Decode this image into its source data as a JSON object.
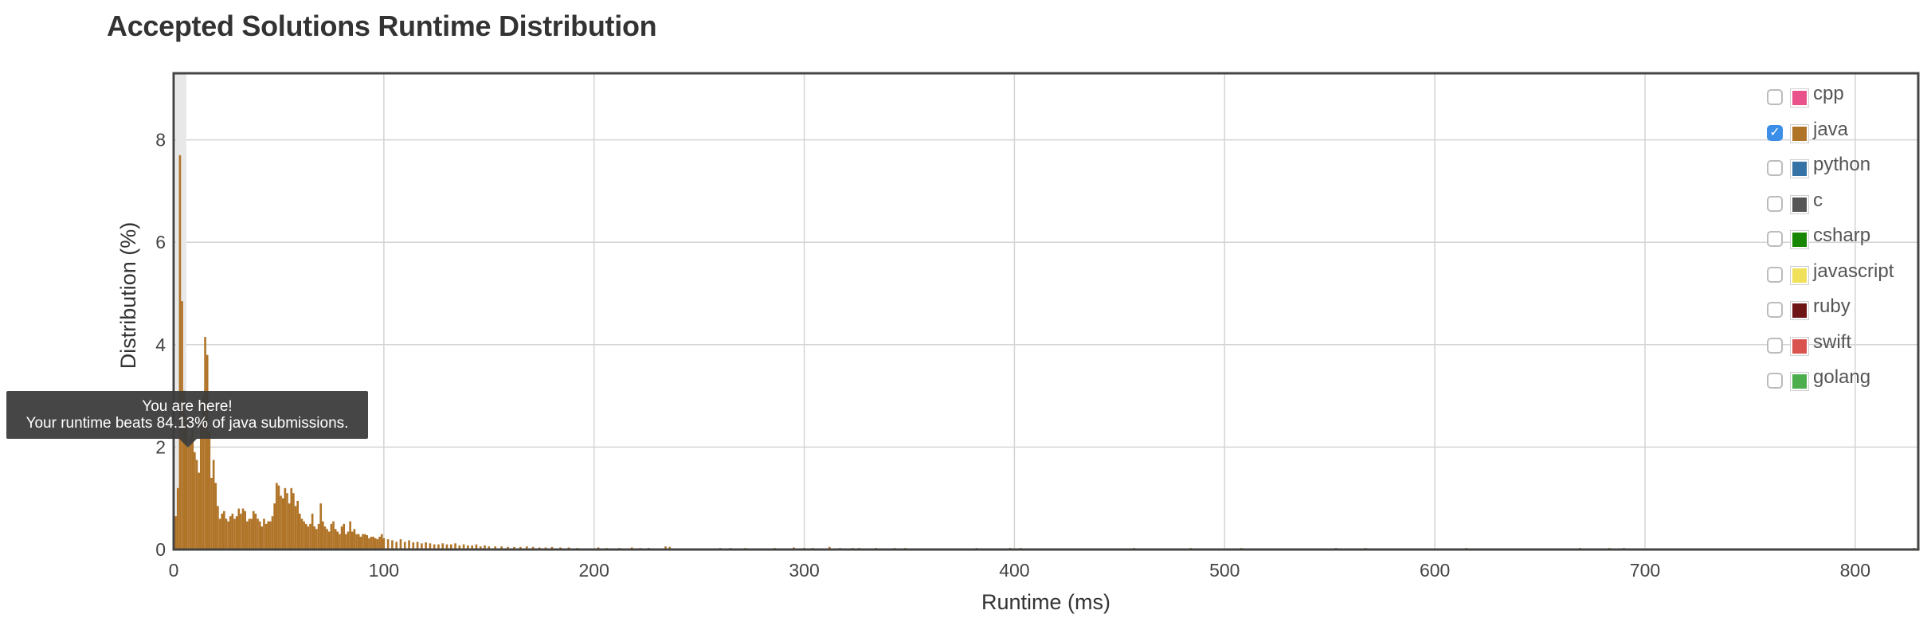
{
  "page": {
    "title": "Accepted Solutions Runtime Distribution"
  },
  "chart_data": {
    "type": "bar",
    "title": "Accepted Solutions Runtime Distribution",
    "xlabel": "Runtime (ms)",
    "ylabel": "Distribution (%)",
    "xlim": [
      0,
      830
    ],
    "ylim": [
      0,
      9.3
    ],
    "xticks": [
      0,
      100,
      200,
      300,
      400,
      500,
      600,
      700,
      800
    ],
    "yticks": [
      0,
      2,
      4,
      6,
      8
    ],
    "grid": true,
    "legend_position": "top-right",
    "bar_color": "#b07428",
    "highlight_color": "#e8e8e8",
    "highlight_range": [
      1,
      6
    ],
    "series": [
      {
        "name": "java",
        "x": [
          1,
          2,
          3,
          4,
          5,
          6,
          7,
          8,
          9,
          10,
          11,
          12,
          13,
          14,
          15,
          16,
          17,
          18,
          19,
          20,
          21,
          22,
          23,
          24,
          25,
          26,
          27,
          28,
          29,
          30,
          31,
          32,
          33,
          34,
          35,
          36,
          37,
          38,
          39,
          40,
          41,
          42,
          43,
          44,
          45,
          46,
          47,
          48,
          49,
          50,
          51,
          52,
          53,
          54,
          55,
          56,
          57,
          58,
          59,
          60,
          61,
          62,
          63,
          64,
          65,
          66,
          67,
          68,
          69,
          70,
          71,
          72,
          73,
          74,
          75,
          76,
          77,
          78,
          79,
          80,
          81,
          82,
          83,
          84,
          85,
          86,
          87,
          88,
          89,
          90,
          91,
          92,
          93,
          94,
          95,
          96,
          97,
          98,
          99,
          100,
          102,
          104,
          106,
          108,
          110,
          112,
          114,
          116,
          118,
          120,
          122,
          124,
          126,
          128,
          130,
          132,
          134,
          136,
          138,
          140,
          142,
          144,
          146,
          148,
          150,
          153,
          156,
          159,
          162,
          165,
          168,
          171,
          174,
          177,
          180,
          184,
          188,
          192,
          202,
          206,
          212,
          218,
          222,
          226,
          234,
          236,
          260,
          265,
          272,
          286,
          295,
          300,
          304,
          312,
          317,
          323,
          326,
          334,
          343,
          348,
          382,
          398,
          403,
          457,
          484,
          508,
          553,
          567,
          615,
          669,
          683,
          690,
          828
        ],
        "values": [
          0.65,
          1.2,
          7.7,
          4.85,
          3.1,
          2.5,
          2.0,
          2.2,
          2.6,
          1.9,
          1.75,
          1.5,
          2.5,
          3.0,
          4.15,
          3.8,
          2.3,
          1.4,
          1.75,
          1.3,
          0.85,
          0.6,
          0.7,
          0.75,
          0.6,
          0.55,
          0.65,
          0.7,
          0.6,
          0.65,
          0.8,
          0.7,
          0.8,
          0.75,
          0.55,
          0.6,
          0.6,
          0.75,
          0.7,
          0.6,
          0.55,
          0.45,
          0.6,
          0.5,
          0.55,
          0.55,
          0.65,
          0.9,
          1.3,
          1.25,
          1.05,
          1.0,
          1.2,
          1.1,
          0.9,
          1.2,
          1.1,
          0.85,
          0.95,
          0.7,
          0.6,
          0.55,
          0.5,
          0.45,
          0.5,
          0.7,
          0.45,
          0.4,
          0.5,
          0.9,
          0.55,
          0.45,
          0.4,
          0.35,
          0.5,
          0.55,
          0.4,
          0.35,
          0.3,
          0.45,
          0.5,
          0.3,
          0.35,
          0.55,
          0.35,
          0.4,
          0.3,
          0.3,
          0.25,
          0.3,
          0.3,
          0.28,
          0.22,
          0.25,
          0.25,
          0.22,
          0.2,
          0.25,
          0.3,
          0.22,
          0.2,
          0.18,
          0.15,
          0.2,
          0.15,
          0.18,
          0.14,
          0.15,
          0.12,
          0.14,
          0.12,
          0.1,
          0.1,
          0.12,
          0.1,
          0.1,
          0.12,
          0.08,
          0.1,
          0.08,
          0.08,
          0.1,
          0.06,
          0.08,
          0.06,
          0.06,
          0.06,
          0.05,
          0.05,
          0.05,
          0.06,
          0.05,
          0.04,
          0.04,
          0.05,
          0.04,
          0.04,
          0.03,
          0.04,
          0.03,
          0.03,
          0.04,
          0.03,
          0.03,
          0.06,
          0.05,
          0.03,
          0.03,
          0.03,
          0.03,
          0.04,
          0.03,
          0.03,
          0.05,
          0.03,
          0.03,
          0.03,
          0.03,
          0.03,
          0.03,
          0.03,
          0.03,
          0.03,
          0.03,
          0.03,
          0.03,
          0.03,
          0.03,
          0.03,
          0.03,
          0.03,
          0.03,
          0.03
        ]
      }
    ]
  },
  "legend": [
    {
      "label": "cpp",
      "color": "#e8518a",
      "checked": false,
      "mark": ""
    },
    {
      "label": "java",
      "color": "#b07428",
      "checked": true,
      "mark": "✓"
    },
    {
      "label": "python",
      "color": "#3572a5",
      "checked": false,
      "mark": ""
    },
    {
      "label": "c",
      "color": "#555555",
      "checked": false,
      "mark": ""
    },
    {
      "label": "csharp",
      "color": "#178600",
      "checked": false,
      "mark": ""
    },
    {
      "label": "javascript",
      "color": "#f1e05a",
      "checked": false,
      "mark": ""
    },
    {
      "label": "ruby",
      "color": "#701516",
      "checked": false,
      "mark": ""
    },
    {
      "label": "swift",
      "color": "#d9534f",
      "checked": false,
      "mark": ""
    },
    {
      "label": "golang",
      "color": "#4cae4c",
      "checked": false,
      "mark": ""
    }
  ],
  "tooltip": {
    "line1": "You are here!",
    "line2": "Your runtime beats 84.13% of java submissions."
  }
}
